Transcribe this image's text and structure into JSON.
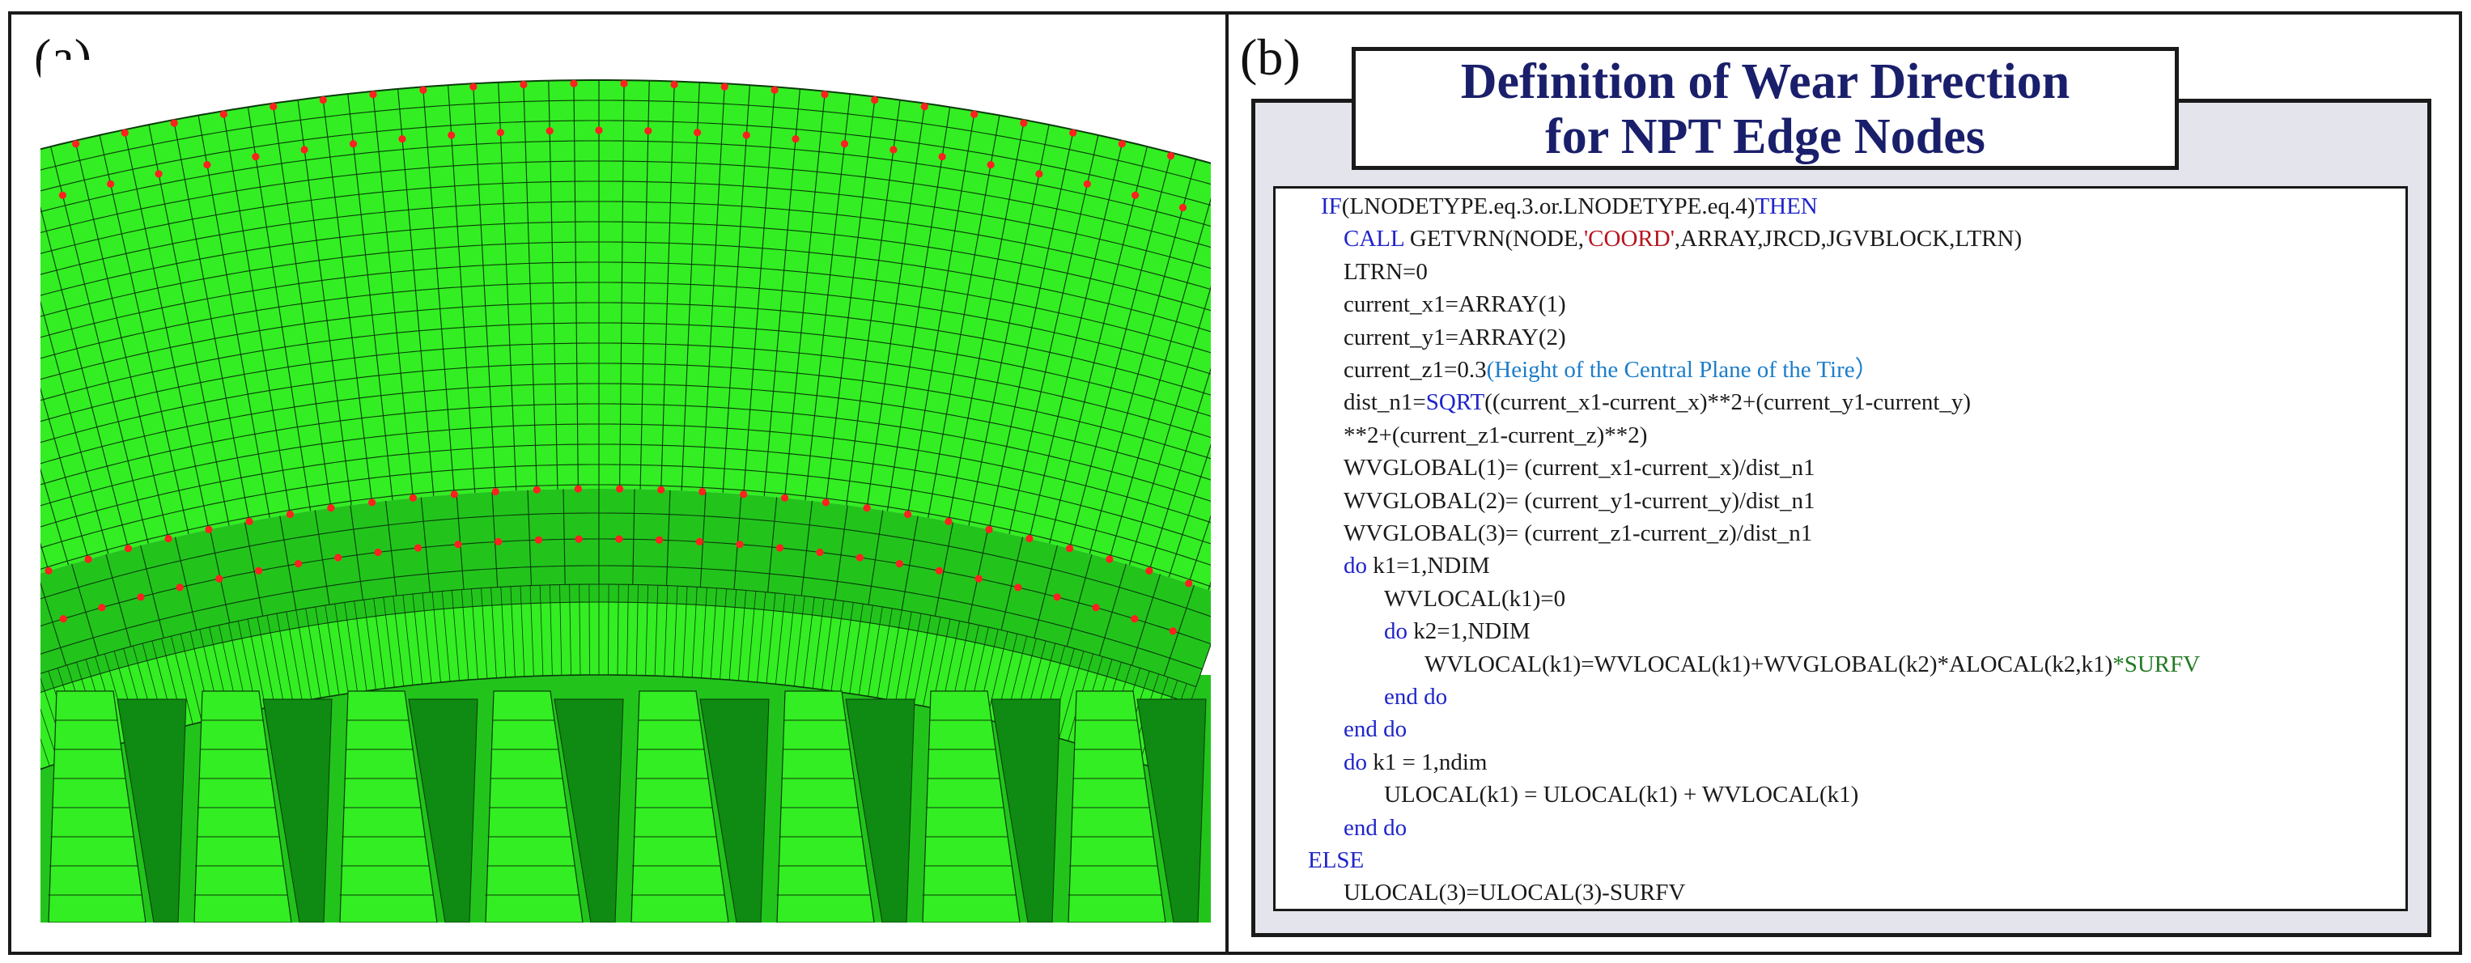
{
  "panels": {
    "a": {
      "label": "(a)"
    },
    "b": {
      "label": "(b)"
    }
  },
  "title": {
    "line1": "Definition of Wear Direction",
    "line2": "for NPT Edge Nodes"
  },
  "colors": {
    "mesh_light": "#33ee22",
    "mesh_mid": "#22c41c",
    "mesh_dark": "#0f8a12",
    "mesh_line": "#0a3a0a",
    "node_marker": "#ff2020",
    "title_text": "#1a1f6b",
    "keyword": "#1f24c9",
    "string": "#b8141e",
    "comment": "#1c7dc9",
    "green_term": "#237a23"
  },
  "code": [
    {
      "indent": 1,
      "parts": [
        {
          "t": "IF",
          "c": "kw"
        },
        {
          "t": "(LNODETYPE.eq.3.or.LNODETYPE.eq.4)",
          "c": ""
        },
        {
          "t": "THEN",
          "c": "kw"
        }
      ]
    },
    {
      "indent": 2,
      "parts": [
        {
          "t": "CALL",
          "c": "kw"
        },
        {
          "t": " GETVRN(NODE,",
          "c": ""
        },
        {
          "t": "'COORD'",
          "c": "str"
        },
        {
          "t": ",ARRAY,JRCD,JGVBLOCK,LTRN)",
          "c": ""
        }
      ]
    },
    {
      "indent": 2,
      "parts": [
        {
          "t": "LTRN=0",
          "c": ""
        }
      ]
    },
    {
      "indent": 2,
      "parts": [
        {
          "t": "current_x1=ARRAY(1)",
          "c": ""
        }
      ]
    },
    {
      "indent": 2,
      "parts": [
        {
          "t": "current_y1=ARRAY(2)",
          "c": ""
        }
      ]
    },
    {
      "indent": 2,
      "parts": [
        {
          "t": "current_z1=0.3",
          "c": ""
        },
        {
          "t": "(Height of the Central Plane of the Tire）",
          "c": "cmt"
        }
      ]
    },
    {
      "indent": 2,
      "parts": [
        {
          "t": "dist_n1=",
          "c": ""
        },
        {
          "t": "SQRT",
          "c": "kw"
        },
        {
          "t": "((current_x1-current_x)**2+(current_y1-current_y)",
          "c": ""
        }
      ]
    },
    {
      "indent": 2,
      "parts": [
        {
          "t": "**2+(current_z1-current_z)**2)",
          "c": ""
        }
      ]
    },
    {
      "indent": 2,
      "parts": [
        {
          "t": "WVGLOBAL(1)= (current_x1-current_x)/dist_n1",
          "c": ""
        }
      ]
    },
    {
      "indent": 2,
      "parts": [
        {
          "t": "WVGLOBAL(2)= (current_y1-current_y)/dist_n1",
          "c": ""
        }
      ]
    },
    {
      "indent": 2,
      "parts": [
        {
          "t": "WVGLOBAL(3)= (current_z1-current_z)/dist_n1",
          "c": ""
        }
      ]
    },
    {
      "indent": 2,
      "parts": [
        {
          "t": "do",
          "c": "kw"
        },
        {
          "t": " k1=1,NDIM",
          "c": ""
        }
      ]
    },
    {
      "indent": 3,
      "parts": [
        {
          "t": "WVLOCAL(k1)=0",
          "c": ""
        }
      ]
    },
    {
      "indent": 3,
      "parts": [
        {
          "t": "do",
          "c": "kw"
        },
        {
          "t": " k2=1,NDIM",
          "c": ""
        }
      ]
    },
    {
      "indent": 4,
      "parts": [
        {
          "t": "WVLOCAL(k1)=WVLOCAL(k1)+WVGLOBAL(k2)*ALOCAL(k2,k1)",
          "c": ""
        },
        {
          "t": "*SURFV",
          "c": "grn"
        }
      ]
    },
    {
      "indent": 3,
      "parts": [
        {
          "t": "end do",
          "c": "kw"
        }
      ]
    },
    {
      "indent": 2,
      "parts": [
        {
          "t": "end do",
          "c": "kw"
        }
      ]
    },
    {
      "indent": 2,
      "parts": [
        {
          "t": "do",
          "c": "kw"
        },
        {
          "t": " k1 = 1,ndim",
          "c": ""
        }
      ]
    },
    {
      "indent": 3,
      "parts": [
        {
          "t": "ULOCAL(k1) = ULOCAL(k1) + WVLOCAL(k1)",
          "c": ""
        }
      ]
    },
    {
      "indent": 2,
      "parts": [
        {
          "t": "end do",
          "c": "kw"
        }
      ]
    },
    {
      "indent": 0,
      "parts": [
        {
          "t": "ELSE",
          "c": "kw"
        }
      ]
    },
    {
      "indent": 2,
      "parts": [
        {
          "t": "ULOCAL(3)=ULOCAL(3)-SURFV",
          "c": ""
        }
      ]
    }
  ]
}
